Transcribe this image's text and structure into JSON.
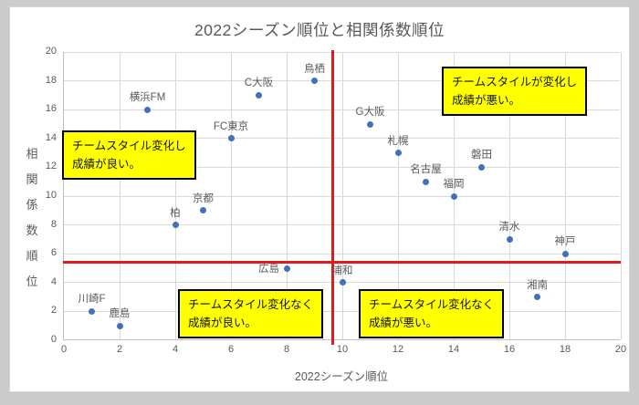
{
  "chart_data": {
    "type": "scatter",
    "title": "2022シーズン順位と相関係数順位",
    "xlabel": "2022シーズン順位",
    "ylabel": "相関係数順位",
    "xlim": [
      0,
      20
    ],
    "ylim": [
      0,
      20
    ],
    "x_ticks": [
      0,
      2,
      4,
      6,
      8,
      10,
      12,
      14,
      16,
      18,
      20
    ],
    "y_ticks": [
      0,
      2,
      4,
      6,
      8,
      10,
      12,
      14,
      16,
      18,
      20
    ],
    "grid": true,
    "legend": false,
    "points": [
      {
        "label": "横浜FM",
        "x": 3,
        "y": 16
      },
      {
        "label": "C大阪",
        "x": 7,
        "y": 17
      },
      {
        "label": "鳥栖",
        "x": 9,
        "y": 18
      },
      {
        "label": "FC東京",
        "x": 6,
        "y": 14
      },
      {
        "label": "G大阪",
        "x": 11,
        "y": 15
      },
      {
        "label": "札幌",
        "x": 12,
        "y": 13
      },
      {
        "label": "磐田",
        "x": 15,
        "y": 12
      },
      {
        "label": "名古屋",
        "x": 13,
        "y": 11
      },
      {
        "label": "福岡",
        "x": 14,
        "y": 10
      },
      {
        "label": "京都",
        "x": 5,
        "y": 9
      },
      {
        "label": "柏",
        "x": 4,
        "y": 8
      },
      {
        "label": "清水",
        "x": 16,
        "y": 7
      },
      {
        "label": "神戸",
        "x": 18,
        "y": 6
      },
      {
        "label": "広島",
        "x": 8,
        "y": 5,
        "label_pos": "left"
      },
      {
        "label": "浦和",
        "x": 10,
        "y": 4
      },
      {
        "label": "湘南",
        "x": 17,
        "y": 3
      },
      {
        "label": "川崎F",
        "x": 1,
        "y": 2
      },
      {
        "label": "鹿島",
        "x": 2,
        "y": 1
      }
    ],
    "reference_lines": {
      "x": 9.65,
      "y": 5.4
    },
    "annotations": [
      {
        "position": "upper-left",
        "line1": "チームスタイル変化し",
        "line2": "成績が良い。"
      },
      {
        "position": "upper-right",
        "line1": "チームスタイルが変化し",
        "line2": "成績が悪い。"
      },
      {
        "position": "lower-left",
        "line1": "チームスタイル変化なく",
        "line2": "成績が良い。"
      },
      {
        "position": "lower-right",
        "line1": "チームスタイル変化なく",
        "line2": "成績が悪い。"
      }
    ],
    "colors": {
      "marker": "#4270ba",
      "reference_line": "#e01b1b",
      "annotation_bg": "#ffff00",
      "annotation_border": "#000000",
      "gridline": "#d9d9d9",
      "axis_text": "#595959"
    }
  }
}
